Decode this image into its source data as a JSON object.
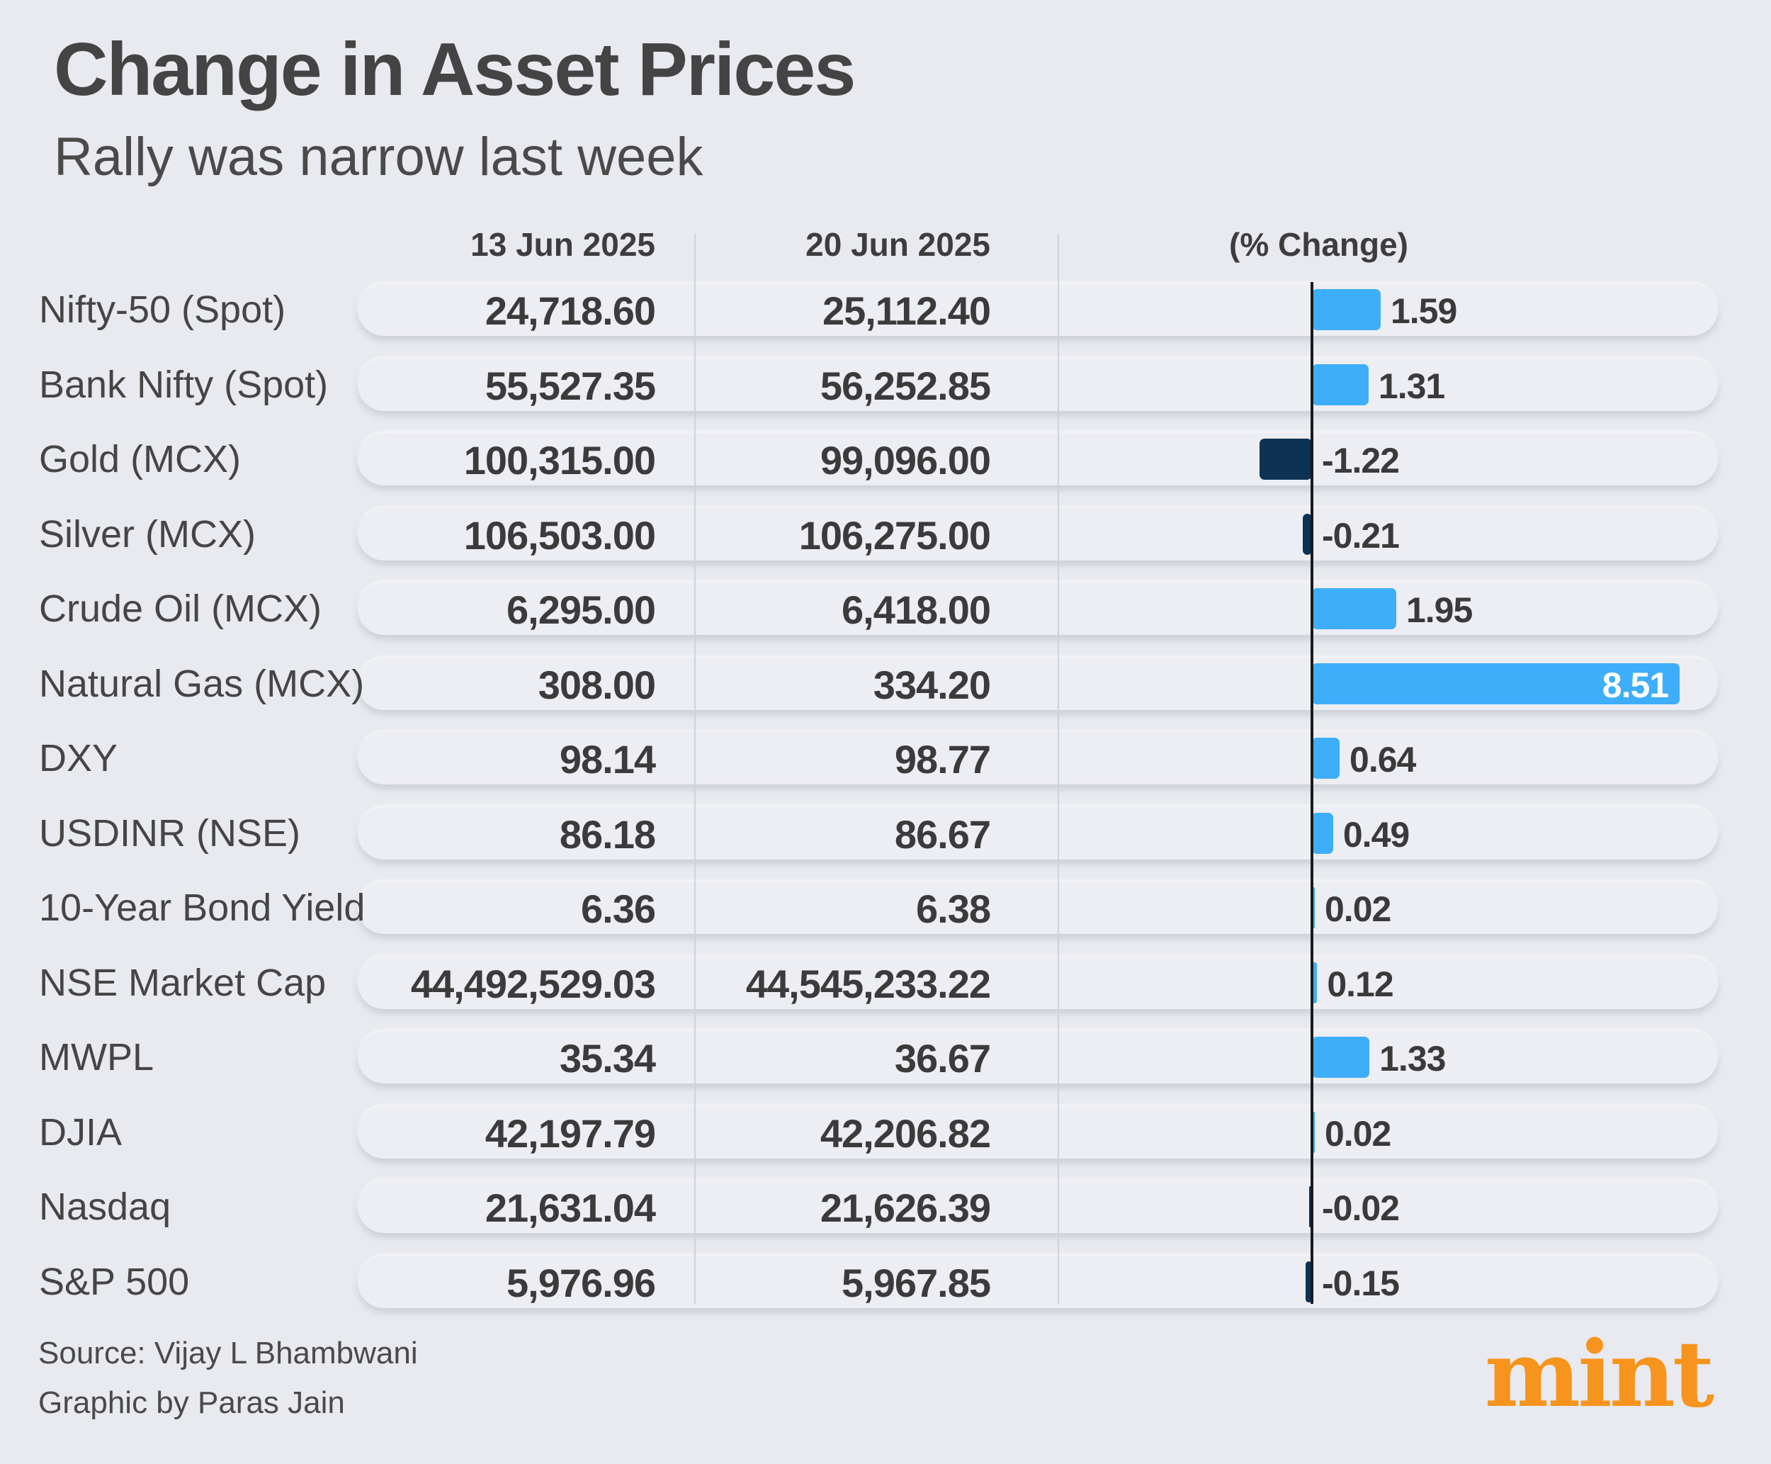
{
  "title": "Change in Asset Prices",
  "subtitle": "Rally was narrow last week",
  "columns": {
    "date1": "13 Jun 2025",
    "date2": "20 Jun 2025",
    "change": "(% Change)"
  },
  "chart_data": {
    "type": "bar",
    "orientation": "horizontal",
    "title": "Change in Asset Prices",
    "subtitle": "Rally was narrow last week",
    "xlabel": "(% Change)",
    "categories": [
      "Nifty-50 (Spot)",
      "Bank Nifty (Spot)",
      "Gold (MCX)",
      "Silver (MCX)",
      "Crude Oil (MCX)",
      "Natural Gas (MCX)",
      "DXY",
      "USDINR (NSE)",
      "10-Year Bond Yield",
      "NSE Market Cap",
      "MWPL",
      "DJIA",
      "Nasdaq",
      "S&P 500"
    ],
    "values": [
      1.59,
      1.31,
      -1.22,
      -0.21,
      1.95,
      8.51,
      0.64,
      0.49,
      0.02,
      0.12,
      1.33,
      0.02,
      -0.02,
      -0.15
    ],
    "value_labels": [
      "1.59",
      "1.31",
      "-1.22",
      "-0.21",
      "1.95",
      "8.51",
      "0.64",
      "0.49",
      "0.02",
      "0.12",
      "1.33",
      "0.02",
      "-0.02",
      "-0.15"
    ],
    "xlim": [
      -1.5,
      8.7
    ],
    "colors": {
      "positive": "#3eaefb",
      "negative": "#0d3254"
    }
  },
  "rows": [
    {
      "asset": "Nifty-50 (Spot)",
      "v13": "24,718.60",
      "v20": "25,112.40"
    },
    {
      "asset": "Bank Nifty (Spot)",
      "v13": "55,527.35",
      "v20": "56,252.85"
    },
    {
      "asset": "Gold (MCX)",
      "v13": "100,315.00",
      "v20": "99,096.00"
    },
    {
      "asset": "Silver (MCX)",
      "v13": "106,503.00",
      "v20": "106,275.00"
    },
    {
      "asset": "Crude Oil (MCX)",
      "v13": "6,295.00",
      "v20": "6,418.00"
    },
    {
      "asset": "Natural Gas (MCX)",
      "v13": "308.00",
      "v20": "334.20"
    },
    {
      "asset": "DXY",
      "v13": "98.14",
      "v20": "98.77"
    },
    {
      "asset": "USDINR (NSE)",
      "v13": "86.18",
      "v20": "86.67"
    },
    {
      "asset": "10-Year Bond Yield",
      "v13": "6.36",
      "v20": "6.38"
    },
    {
      "asset": "NSE Market Cap",
      "v13": "44,492,529.03",
      "v20": "44,545,233.22"
    },
    {
      "asset": "MWPL",
      "v13": "35.34",
      "v20": "36.67"
    },
    {
      "asset": "DJIA",
      "v13": "42,197.79",
      "v20": "42,206.82"
    },
    {
      "asset": "Nasdaq",
      "v13": "21,631.04",
      "v20": "21,626.39"
    },
    {
      "asset": "S&P 500",
      "v13": "5,976.96",
      "v20": "5,967.85"
    }
  ],
  "source": "Source: Vijay L Bhambwani",
  "credit": "Graphic by Paras Jain",
  "logo": "mint",
  "colors": {
    "logo": "#f7941d",
    "background": "#e8eaf0"
  }
}
